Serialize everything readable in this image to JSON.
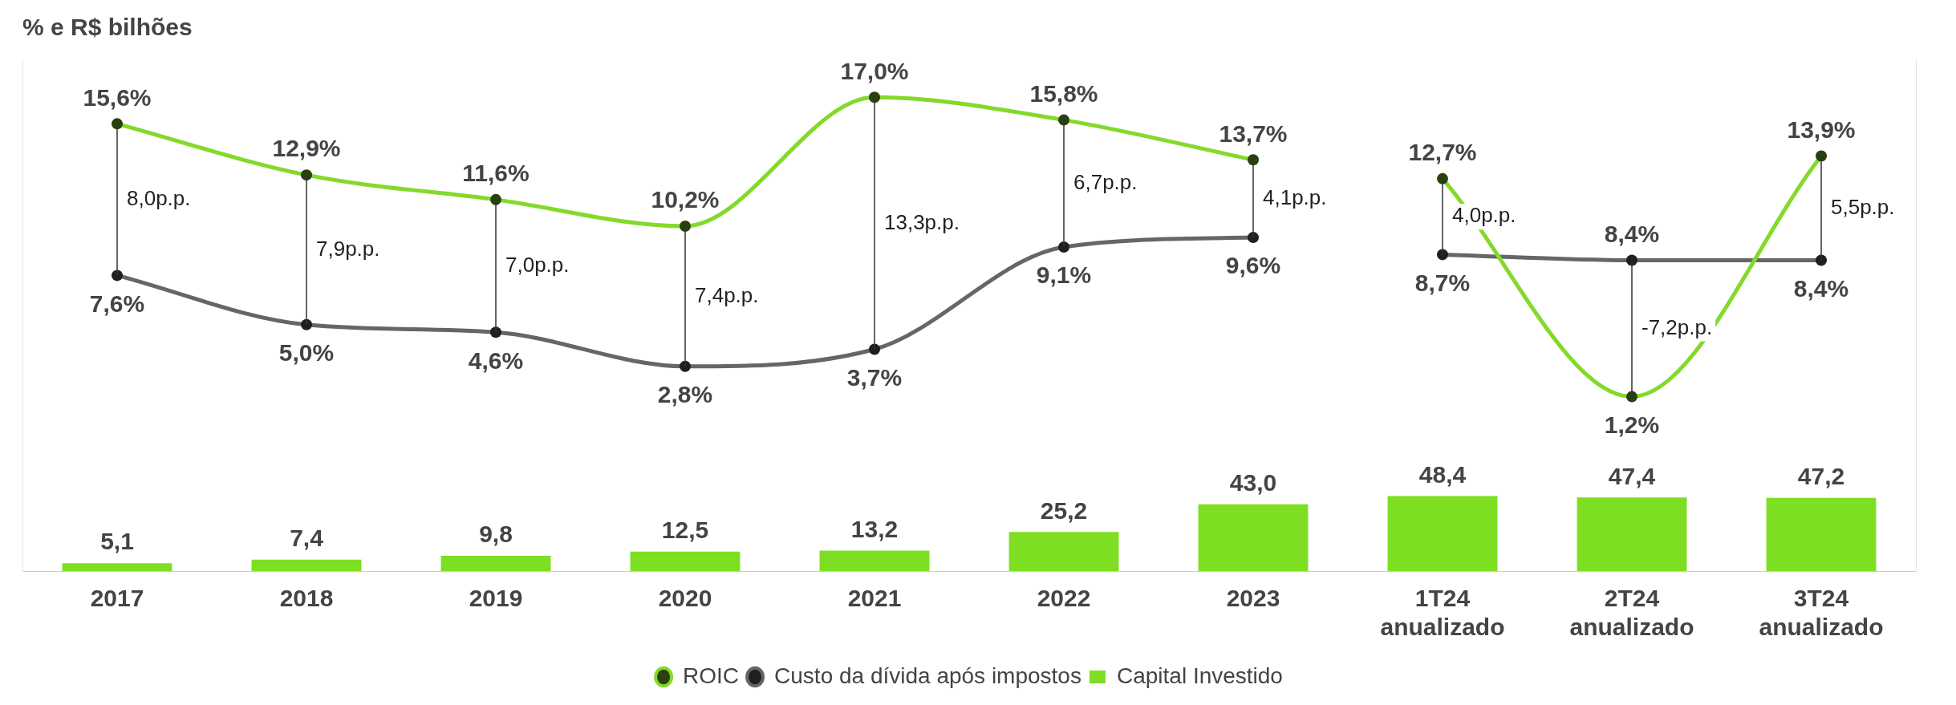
{
  "chart_data": {
    "type": "bar",
    "title": "% e R$ bilhões",
    "categories": [
      "2017",
      "2018",
      "2019",
      "2020",
      "2021",
      "2022",
      "2023",
      "1T24 anualizado",
      "2T24 anualizado",
      "3T24 anualizado"
    ],
    "series": [
      {
        "name": "ROIC",
        "type": "line",
        "axis": "y2",
        "color": "#84d92c",
        "values": [
          15.6,
          12.9,
          11.6,
          10.2,
          17.0,
          15.8,
          13.7,
          null,
          null,
          null
        ],
        "value_labels": [
          "15,6%",
          "12,9%",
          "11,6%",
          "10,2%",
          "17,0%",
          "15,8%",
          "13,7%",
          null,
          null,
          null
        ]
      },
      {
        "type": "line",
        "axis": "y2",
        "color": "#84d92c",
        "values": [
          null,
          null,
          null,
          null,
          null,
          null,
          null,
          12.7,
          1.2,
          13.9
        ],
        "value_labels": [
          null,
          null,
          null,
          null,
          null,
          null,
          null,
          "12,7%",
          "1,2%",
          "13,9%"
        ]
      },
      {
        "name": "Custo da dívida após impostos",
        "type": "line",
        "axis": "y2",
        "color": "#666666",
        "values": [
          7.6,
          5.0,
          4.6,
          2.8,
          3.7,
          9.1,
          9.6,
          null,
          null,
          null
        ],
        "value_labels": [
          "7,6%",
          "5,0%",
          "4,6%",
          "2,8%",
          "3,7%",
          "9,1%",
          "9,6%",
          null,
          null,
          null
        ]
      },
      {
        "type": "line",
        "axis": "y2",
        "color": "#666666",
        "values": [
          null,
          null,
          null,
          null,
          null,
          null,
          null,
          8.7,
          8.4,
          8.4
        ],
        "value_labels": [
          null,
          null,
          null,
          null,
          null,
          null,
          null,
          "8,7%",
          "8,4%",
          "8,4%"
        ]
      },
      {
        "name": "Capital Investido",
        "color": "#7ede22",
        "values": [
          5.1,
          7.4,
          9.8,
          12.5,
          13.2,
          25.2,
          43.0,
          48.4,
          47.4,
          47.2
        ],
        "value_labels": [
          "5,1",
          "7,4",
          "9,8",
          "12,5",
          "13,2",
          "25,2",
          "43,0",
          "48,4",
          "47,4",
          "47,2"
        ]
      }
    ],
    "ylim": [
      0,
      330
    ],
    "y2lim": [
      -8,
      19
    ],
    "annotations": [
      "8,0p.p.",
      "7,9p.p.",
      "7,0p.p.",
      "7,4p.p.",
      "13,3p.p.",
      "6,7p.p.",
      "4,1p.p.",
      "4,0p.p.",
      "-7,2p.p.",
      "5,5p.p."
    ],
    "grid": false,
    "legend": "bottom",
    "tick_labels": "x",
    "marker": "circle",
    "line_style": "solid"
  }
}
